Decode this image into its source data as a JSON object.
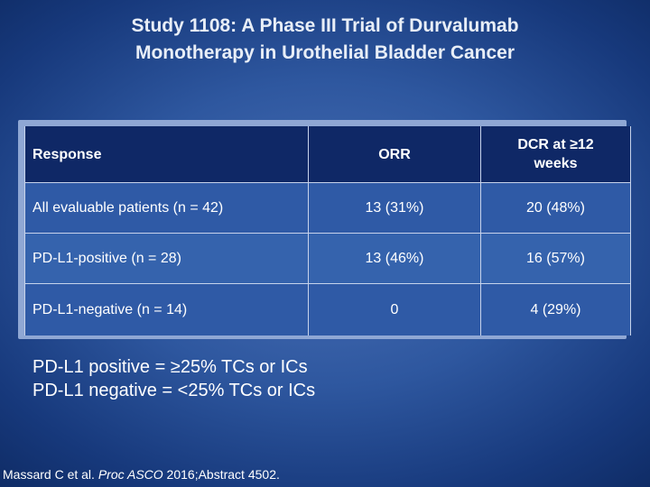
{
  "title": {
    "line1": "Study 1108: A Phase III Trial of Durvalumab",
    "line2": "Monotherapy in Urothelial Bladder Cancer"
  },
  "table": {
    "headers": {
      "response": "Response",
      "orr": "ORR",
      "dcr_line1": "DCR at ≥12",
      "dcr_line2": "weeks"
    },
    "rows": [
      {
        "label": "All evaluable patients (n = 42)",
        "orr": "13 (31%)",
        "dcr": "20 (48%)"
      },
      {
        "label": "PD-L1-positive (n = 28)",
        "orr": "13 (46%)",
        "dcr": "16 (57%)"
      },
      {
        "label": "PD-L1-negative (n = 14)",
        "orr": "0",
        "dcr": "4 (29%)"
      }
    ]
  },
  "notes": {
    "positive": "PD-L1 positive = ≥25% TCs or ICs",
    "negative": "PD-L1 negative = <25% TCs or ICs"
  },
  "citation": {
    "prefix": "Massard C et al. ",
    "journal": "Proc ASCO",
    "suffix": " 2016;Abstract 4502."
  },
  "colors": {
    "background_center": "#4a70b6",
    "background_edge": "#0f2c66",
    "header_fill": "#0f2866",
    "row_fill": "#2f5aa6",
    "table_frame": "#8fa7d4"
  }
}
